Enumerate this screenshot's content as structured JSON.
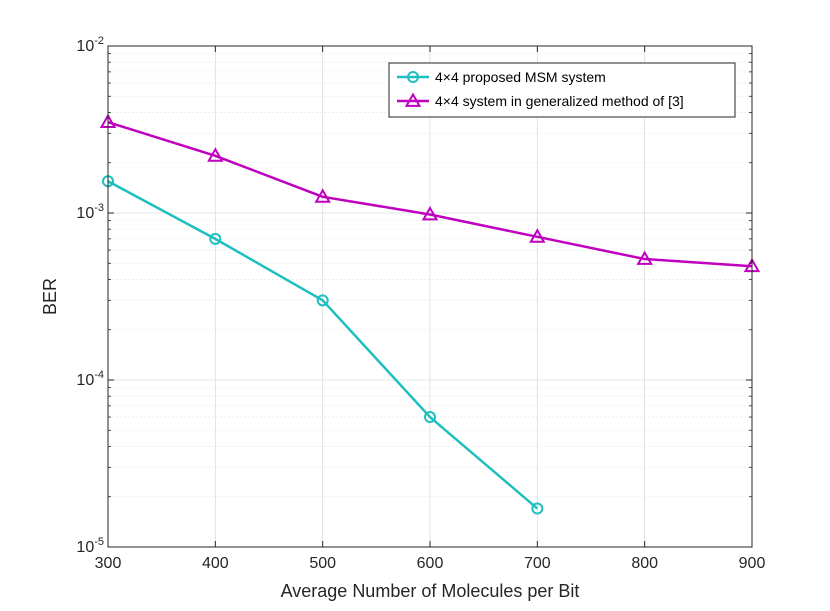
{
  "chart_data": {
    "type": "line",
    "title": "",
    "xlabel": "Average Number of Molecules per Bit",
    "ylabel": "BER",
    "xlim": [
      300,
      900
    ],
    "ylim": [
      1e-05,
      0.01
    ],
    "yscale": "log",
    "grid": true,
    "minor_grid": true,
    "legend_position": "top-right",
    "x_ticks": [
      300,
      400,
      500,
      600,
      700,
      800,
      900
    ],
    "x_tick_labels": [
      "300",
      "400",
      "500",
      "600",
      "700",
      "800",
      "900"
    ],
    "y_ticks": [
      {
        "value": 1e-05,
        "base": "10",
        "exp": "-5"
      },
      {
        "value": 0.0001,
        "base": "10",
        "exp": "-4"
      },
      {
        "value": 0.001,
        "base": "10",
        "exp": "-3"
      },
      {
        "value": 0.01,
        "base": "10",
        "exp": "-2"
      }
    ],
    "series": [
      {
        "name": "4×4 proposed MSM system",
        "color": "#1fbfbf",
        "marker": "circle",
        "x": [
          300,
          400,
          500,
          600,
          700
        ],
        "values": [
          0.00155,
          0.0007,
          0.0003,
          6e-05,
          1.7e-05
        ]
      },
      {
        "name": "4×4 system in generalized method of [3]",
        "color": "#bf00bf",
        "marker": "triangle",
        "x": [
          300,
          400,
          500,
          600,
          700,
          800,
          900
        ],
        "values": [
          0.0035,
          0.0022,
          0.00125,
          0.00098,
          0.00072,
          0.00053,
          0.00048
        ]
      }
    ]
  }
}
